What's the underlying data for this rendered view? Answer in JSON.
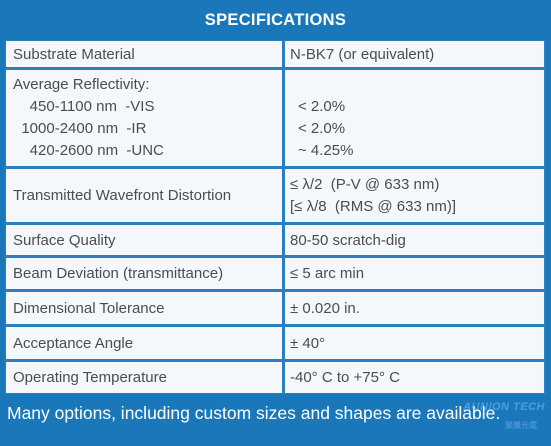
{
  "title": "SPECIFICATIONS",
  "rows": [
    {
      "label": "Substrate Material",
      "value": "N-BK7 (or equivalent)"
    },
    {
      "label_lines": [
        "Average Reflectivity:",
        "    450-1100 nm  -VIS",
        "  1000-2400 nm  -IR",
        "    420-2600 nm  -UNC"
      ],
      "value_lines": [
        "< 2.0%",
        "< 2.0%",
        "~ 4.25%"
      ]
    },
    {
      "label": "Transmitted Wavefront Distortion",
      "value_lines": [
        "≤ λ/2  (P-V @ 633 nm)",
        "[≤ λ/8  (RMS @ 633 nm)]"
      ]
    },
    {
      "label": "Surface Quality",
      "value": "80-50  scratch-dig"
    },
    {
      "label": "Beam Deviation (transmittance)",
      "value": "≤ 5 arc min"
    },
    {
      "label": "Dimensional Tolerance",
      "value": "± 0.020 in."
    },
    {
      "label": "Acceptance Angle",
      "value": "± 40°"
    },
    {
      "label": "Operating Temperature",
      "value": "-40° C to +75° C"
    }
  ],
  "footer": "Many options, including custom sizes and shapes are available.",
  "watermark": "AUNION TECH",
  "watermark_sub": "聚騰光電"
}
